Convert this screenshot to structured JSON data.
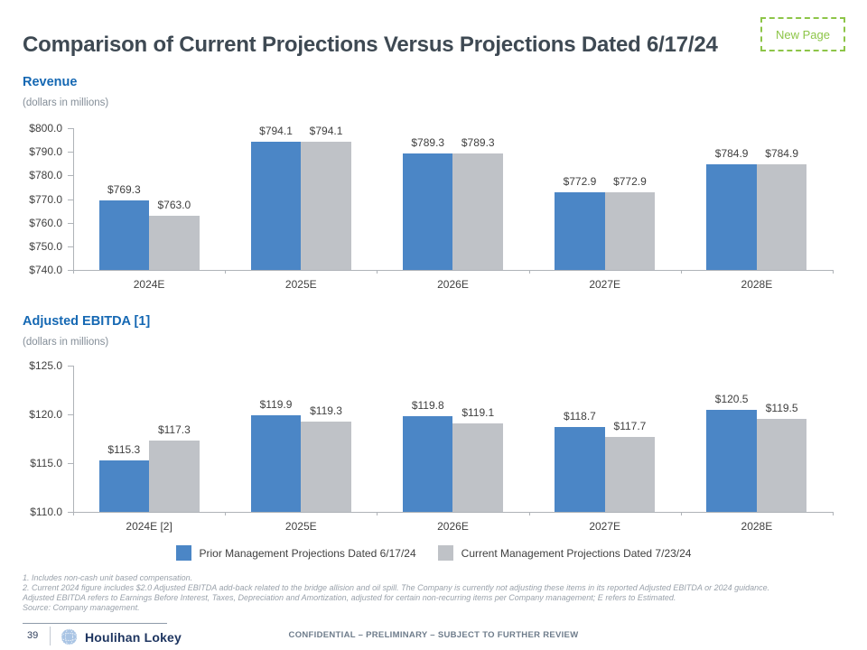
{
  "header": {
    "title": "Comparison of Current Projections Versus Projections Dated 6/17/24",
    "badge": "New Page"
  },
  "chart_data": [
    {
      "type": "bar",
      "title": "Revenue",
      "subtitle": "(dollars in millions)",
      "categories": [
        "2024E",
        "2025E",
        "2026E",
        "2027E",
        "2028E"
      ],
      "series": [
        {
          "name": "Prior Management Projections Dated 6/17/24",
          "color": "#4B86C6",
          "values": [
            769.3,
            794.1,
            789.3,
            772.9,
            784.9
          ]
        },
        {
          "name": "Current Management Projections Dated 7/23/24",
          "color": "#BFC2C7",
          "values": [
            763.0,
            794.1,
            789.3,
            772.9,
            784.9
          ]
        }
      ],
      "ylim": [
        740,
        800
      ],
      "ytick_step": 10,
      "value_prefix": "$",
      "grid": false,
      "legend_position": "shared-bottom"
    },
    {
      "type": "bar",
      "title": "Adjusted EBITDA [1]",
      "subtitle": "(dollars in millions)",
      "categories": [
        "2024E [2]",
        "2025E",
        "2026E",
        "2027E",
        "2028E"
      ],
      "series": [
        {
          "name": "Prior Management Projections Dated 6/17/24",
          "color": "#4B86C6",
          "values": [
            115.3,
            119.9,
            119.8,
            118.7,
            120.5
          ]
        },
        {
          "name": "Current Management Projections Dated 7/23/24",
          "color": "#BFC2C7",
          "values": [
            117.3,
            119.3,
            119.1,
            117.7,
            119.5
          ]
        }
      ],
      "ylim": [
        110,
        125
      ],
      "ytick_step": 5,
      "value_prefix": "$",
      "grid": false,
      "legend_position": "shared-bottom"
    }
  ],
  "legend": [
    {
      "label": "Prior Management Projections Dated 6/17/24",
      "color": "#4B86C6"
    },
    {
      "label": "Current Management Projections Dated 7/23/24",
      "color": "#BFC2C7"
    }
  ],
  "footnotes": [
    "1. Includes non-cash unit based compensation.",
    "2. Current 2024 figure includes $2.0 Adjusted EBITDA add-back related to the bridge allision and oil spill. The Company is currently not adjusting these items in its reported Adjusted EBITDA or 2024 guidance.",
    "Adjusted EBITDA refers to Earnings Before Interest, Taxes, Depreciation and Amortization, adjusted for certain non-recurring items per Company management; E refers to Estimated.",
    "Source: Company management."
  ],
  "footer": {
    "page_number": "39",
    "brand": "Houlihan Lokey",
    "confidential": "CONFIDENTIAL – PRELIMINARY – SUBJECT TO FURTHER REVIEW"
  },
  "icons": {
    "globe_icon_color": "#A9C4E4"
  }
}
